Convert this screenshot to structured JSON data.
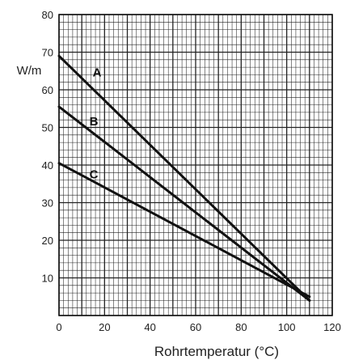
{
  "chart_data": {
    "type": "line",
    "xlabel": "Rohrtemperatur (°C)",
    "ylabel": "W/m",
    "xlim": [
      0,
      120
    ],
    "ylim": [
      0,
      80
    ],
    "x_ticks": [
      0,
      20,
      40,
      60,
      80,
      100,
      120
    ],
    "y_ticks": [
      10,
      20,
      30,
      40,
      50,
      60,
      70,
      80
    ],
    "grid": true,
    "series": [
      {
        "name": "A",
        "x": [
          0,
          110
        ],
        "y": [
          69,
          4
        ]
      },
      {
        "name": "B",
        "x": [
          0,
          110
        ],
        "y": [
          55.5,
          4
        ]
      },
      {
        "name": "C",
        "x": [
          0,
          110
        ],
        "y": [
          40.5,
          5
        ]
      }
    ]
  }
}
